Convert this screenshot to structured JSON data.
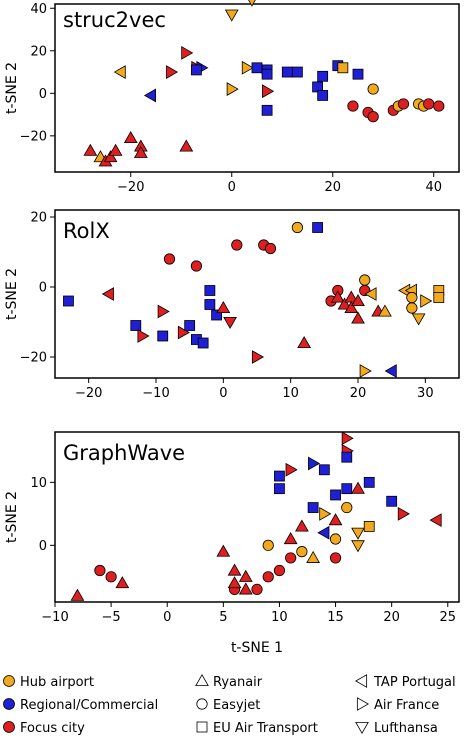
{
  "colors": {
    "hub": "#f2a91e",
    "regional": "#1f1fd6",
    "focus": "#de1f1f",
    "legend_marker_fill": "#ffffff",
    "axes": "#000000"
  },
  "legend": {
    "roles": [
      {
        "key": "hub",
        "label": "Hub airport"
      },
      {
        "key": "regional",
        "label": "Regional/Commercial"
      },
      {
        "key": "focus",
        "label": "Focus city"
      }
    ],
    "airlines": [
      {
        "key": "ryanair",
        "shape": "triangle-up",
        "label": "Ryanair"
      },
      {
        "key": "easyjet",
        "shape": "circle",
        "label": "Easyjet"
      },
      {
        "key": "eu",
        "shape": "square",
        "label": "EU Air Transport"
      },
      {
        "key": "tap",
        "shape": "triangle-left",
        "label": "TAP Portugal"
      },
      {
        "key": "airfrance",
        "shape": "triangle-right",
        "label": "Air France"
      },
      {
        "key": "lufthansa",
        "shape": "triangle-down",
        "label": "Lufthansa"
      }
    ]
  },
  "chart_data": [
    {
      "type": "scatter",
      "title": "struc2vec",
      "xlabel": "",
      "ylabel": "t-SNE 2",
      "xlim": [
        -35,
        45
      ],
      "ylim": [
        -37,
        42
      ],
      "xticks": [
        -20,
        0,
        20,
        40
      ],
      "yticks": [
        -20,
        0,
        20,
        40
      ],
      "points": [
        {
          "x": -28,
          "y": -27,
          "shape": "triangle-up",
          "role": "focus"
        },
        {
          "x": -26,
          "y": -30,
          "shape": "triangle-up",
          "role": "hub"
        },
        {
          "x": -25,
          "y": -32,
          "shape": "triangle-up",
          "role": "focus"
        },
        {
          "x": -24,
          "y": -30,
          "shape": "triangle-up",
          "role": "focus"
        },
        {
          "x": -23,
          "y": -27,
          "shape": "triangle-up",
          "role": "focus"
        },
        {
          "x": -20,
          "y": -21,
          "shape": "triangle-up",
          "role": "focus"
        },
        {
          "x": -18,
          "y": -25,
          "shape": "triangle-up",
          "role": "focus"
        },
        {
          "x": -18,
          "y": -28,
          "shape": "triangle-up",
          "role": "focus"
        },
        {
          "x": -9,
          "y": -25,
          "shape": "triangle-up",
          "role": "focus"
        },
        {
          "x": -22,
          "y": 10,
          "shape": "triangle-left",
          "role": "hub"
        },
        {
          "x": -16,
          "y": -1,
          "shape": "triangle-left",
          "role": "regional"
        },
        {
          "x": -12,
          "y": 10,
          "shape": "triangle-right",
          "role": "focus"
        },
        {
          "x": -9,
          "y": 19,
          "shape": "triangle-right",
          "role": "focus"
        },
        {
          "x": -7,
          "y": 12,
          "shape": "triangle-right",
          "role": "focus"
        },
        {
          "x": -6,
          "y": 12,
          "shape": "triangle-right",
          "role": "regional"
        },
        {
          "x": -7,
          "y": 11,
          "shape": "square",
          "role": "regional"
        },
        {
          "x": 0,
          "y": 37,
          "shape": "triangle-down",
          "role": "hub"
        },
        {
          "x": 4,
          "y": 44,
          "shape": "triangle-down",
          "role": "hub"
        },
        {
          "x": 0,
          "y": 2,
          "shape": "triangle-right",
          "role": "hub"
        },
        {
          "x": 3,
          "y": 12,
          "shape": "triangle-right",
          "role": "hub"
        },
        {
          "x": 5,
          "y": 12,
          "shape": "square",
          "role": "regional"
        },
        {
          "x": 7,
          "y": 11,
          "shape": "square",
          "role": "regional"
        },
        {
          "x": 7,
          "y": 9,
          "shape": "square",
          "role": "regional"
        },
        {
          "x": 7,
          "y": -8,
          "shape": "square",
          "role": "regional"
        },
        {
          "x": 7,
          "y": 1,
          "shape": "triangle-right",
          "role": "focus"
        },
        {
          "x": 11,
          "y": 10,
          "shape": "square",
          "role": "regional"
        },
        {
          "x": 13,
          "y": 10,
          "shape": "square",
          "role": "regional"
        },
        {
          "x": 17,
          "y": 3,
          "shape": "square",
          "role": "regional"
        },
        {
          "x": 18,
          "y": 8,
          "shape": "square",
          "role": "regional"
        },
        {
          "x": 18,
          "y": -1,
          "shape": "square",
          "role": "regional"
        },
        {
          "x": 21,
          "y": 13,
          "shape": "square",
          "role": "regional"
        },
        {
          "x": 22,
          "y": 12,
          "shape": "square",
          "role": "hub"
        },
        {
          "x": 25,
          "y": 9,
          "shape": "square",
          "role": "regional"
        },
        {
          "x": 24,
          "y": -6,
          "shape": "circle",
          "role": "focus"
        },
        {
          "x": 27,
          "y": -9,
          "shape": "circle",
          "role": "focus"
        },
        {
          "x": 28,
          "y": -11,
          "shape": "circle",
          "role": "focus"
        },
        {
          "x": 28,
          "y": 2,
          "shape": "circle",
          "role": "hub"
        },
        {
          "x": 32,
          "y": -8,
          "shape": "circle",
          "role": "focus"
        },
        {
          "x": 33,
          "y": -6,
          "shape": "circle",
          "role": "hub"
        },
        {
          "x": 34,
          "y": -5,
          "shape": "circle",
          "role": "focus"
        },
        {
          "x": 37,
          "y": -5,
          "shape": "circle",
          "role": "hub"
        },
        {
          "x": 38,
          "y": -6,
          "shape": "circle",
          "role": "hub"
        },
        {
          "x": 39,
          "y": -5,
          "shape": "circle",
          "role": "focus"
        },
        {
          "x": 41,
          "y": -6,
          "shape": "circle",
          "role": "focus"
        }
      ]
    },
    {
      "type": "scatter",
      "title": "RolX",
      "xlabel": "",
      "ylabel": "t-SNE 2",
      "xlim": [
        -25,
        35
      ],
      "ylim": [
        -26,
        22
      ],
      "xticks": [
        -20,
        -10,
        0,
        10,
        20,
        30
      ],
      "yticks": [
        -20,
        0,
        20
      ],
      "points": [
        {
          "x": -23,
          "y": -4,
          "shape": "square",
          "role": "regional"
        },
        {
          "x": -17,
          "y": -2,
          "shape": "triangle-left",
          "role": "focus"
        },
        {
          "x": -13,
          "y": -11,
          "shape": "square",
          "role": "regional"
        },
        {
          "x": -12,
          "y": -14,
          "shape": "triangle-right",
          "role": "focus"
        },
        {
          "x": -9,
          "y": -7,
          "shape": "triangle-right",
          "role": "focus"
        },
        {
          "x": -9,
          "y": -14,
          "shape": "square",
          "role": "regional"
        },
        {
          "x": -8,
          "y": 8,
          "shape": "circle",
          "role": "focus"
        },
        {
          "x": -4,
          "y": 6,
          "shape": "circle",
          "role": "focus"
        },
        {
          "x": -6,
          "y": -13,
          "shape": "triangle-right",
          "role": "focus"
        },
        {
          "x": -5,
          "y": -11,
          "shape": "square",
          "role": "regional"
        },
        {
          "x": -4,
          "y": -15,
          "shape": "square",
          "role": "regional"
        },
        {
          "x": -3,
          "y": -16,
          "shape": "square",
          "role": "regional"
        },
        {
          "x": -2,
          "y": -1,
          "shape": "square",
          "role": "regional"
        },
        {
          "x": -2,
          "y": -5,
          "shape": "square",
          "role": "regional"
        },
        {
          "x": -1,
          "y": -8,
          "shape": "square",
          "role": "regional"
        },
        {
          "x": 0,
          "y": -6,
          "shape": "triangle-up",
          "role": "focus"
        },
        {
          "x": 1,
          "y": -10,
          "shape": "triangle-down",
          "role": "focus"
        },
        {
          "x": 2,
          "y": 12,
          "shape": "circle",
          "role": "focus"
        },
        {
          "x": 5,
          "y": -20,
          "shape": "triangle-right",
          "role": "focus"
        },
        {
          "x": 6,
          "y": 12,
          "shape": "circle",
          "role": "focus"
        },
        {
          "x": 7,
          "y": 11,
          "shape": "circle",
          "role": "focus"
        },
        {
          "x": 11,
          "y": 17,
          "shape": "circle",
          "role": "hub"
        },
        {
          "x": 12,
          "y": -16,
          "shape": "triangle-up",
          "role": "focus"
        },
        {
          "x": 14,
          "y": 17,
          "shape": "square",
          "role": "regional"
        },
        {
          "x": 16,
          "y": -4,
          "shape": "circle",
          "role": "focus"
        },
        {
          "x": 17,
          "y": -1,
          "shape": "circle",
          "role": "focus"
        },
        {
          "x": 17,
          "y": -3,
          "shape": "triangle-up",
          "role": "focus"
        },
        {
          "x": 18,
          "y": -5,
          "shape": "triangle-up",
          "role": "focus"
        },
        {
          "x": 19,
          "y": -3,
          "shape": "triangle-up",
          "role": "focus"
        },
        {
          "x": 19,
          "y": -6,
          "shape": "triangle-up",
          "role": "focus"
        },
        {
          "x": 20,
          "y": -4,
          "shape": "triangle-up",
          "role": "focus"
        },
        {
          "x": 20,
          "y": -9,
          "shape": "triangle-up",
          "role": "focus"
        },
        {
          "x": 21,
          "y": -1,
          "shape": "circle",
          "role": "focus"
        },
        {
          "x": 21,
          "y": 2,
          "shape": "circle",
          "role": "hub"
        },
        {
          "x": 22,
          "y": -2,
          "shape": "triangle-left",
          "role": "hub"
        },
        {
          "x": 21,
          "y": -24,
          "shape": "triangle-right",
          "role": "hub"
        },
        {
          "x": 23,
          "y": -7,
          "shape": "triangle-up",
          "role": "focus"
        },
        {
          "x": 24,
          "y": -7,
          "shape": "triangle-up",
          "role": "hub"
        },
        {
          "x": 25,
          "y": -24,
          "shape": "triangle-left",
          "role": "regional"
        },
        {
          "x": 27,
          "y": -1,
          "shape": "triangle-left",
          "role": "hub"
        },
        {
          "x": 28,
          "y": -1,
          "shape": "triangle-left",
          "role": "hub"
        },
        {
          "x": 28,
          "y": -3,
          "shape": "circle",
          "role": "hub"
        },
        {
          "x": 28,
          "y": -6,
          "shape": "circle",
          "role": "hub"
        },
        {
          "x": 29,
          "y": -9,
          "shape": "triangle-down",
          "role": "hub"
        },
        {
          "x": 30,
          "y": -4,
          "shape": "triangle-right",
          "role": "hub"
        },
        {
          "x": 32,
          "y": -1,
          "shape": "square",
          "role": "hub"
        },
        {
          "x": 32,
          "y": -3,
          "shape": "square",
          "role": "hub"
        }
      ]
    },
    {
      "type": "scatter",
      "title": "GraphWave",
      "xlabel": "t-SNE 1",
      "ylabel": "t-SNE 2",
      "xlim": [
        -10,
        26
      ],
      "ylim": [
        -9,
        18
      ],
      "xticks": [
        -10,
        -5,
        0,
        5,
        10,
        15,
        20,
        25
      ],
      "yticks": [
        0,
        10
      ],
      "points": [
        {
          "x": -8,
          "y": -8,
          "shape": "triangle-up",
          "role": "focus"
        },
        {
          "x": -6,
          "y": -4,
          "shape": "circle",
          "role": "focus"
        },
        {
          "x": -5,
          "y": -5,
          "shape": "circle",
          "role": "focus"
        },
        {
          "x": -4,
          "y": -6,
          "shape": "triangle-up",
          "role": "focus"
        },
        {
          "x": 5,
          "y": -1,
          "shape": "triangle-up",
          "role": "focus"
        },
        {
          "x": 6,
          "y": -7,
          "shape": "circle",
          "role": "focus"
        },
        {
          "x": 6,
          "y": -6,
          "shape": "triangle-up",
          "role": "focus"
        },
        {
          "x": 6,
          "y": -4,
          "shape": "triangle-up",
          "role": "focus"
        },
        {
          "x": 7,
          "y": -5,
          "shape": "triangle-up",
          "role": "focus"
        },
        {
          "x": 7,
          "y": -7,
          "shape": "triangle-up",
          "role": "focus"
        },
        {
          "x": 8,
          "y": -7,
          "shape": "circle",
          "role": "focus"
        },
        {
          "x": 9,
          "y": 0,
          "shape": "circle",
          "role": "hub"
        },
        {
          "x": 9,
          "y": -5,
          "shape": "circle",
          "role": "focus"
        },
        {
          "x": 10,
          "y": 11,
          "shape": "square",
          "role": "regional"
        },
        {
          "x": 10,
          "y": 9,
          "shape": "square",
          "role": "regional"
        },
        {
          "x": 10,
          "y": -4,
          "shape": "circle",
          "role": "focus"
        },
        {
          "x": 11,
          "y": 12,
          "shape": "triangle-right",
          "role": "focus"
        },
        {
          "x": 11,
          "y": -2,
          "shape": "circle",
          "role": "focus"
        },
        {
          "x": 11,
          "y": 1,
          "shape": "triangle-up",
          "role": "focus"
        },
        {
          "x": 12,
          "y": -1,
          "shape": "circle",
          "role": "hub"
        },
        {
          "x": 12,
          "y": 3,
          "shape": "triangle-up",
          "role": "focus"
        },
        {
          "x": 13,
          "y": 6,
          "shape": "square",
          "role": "regional"
        },
        {
          "x": 13,
          "y": 13,
          "shape": "triangle-right",
          "role": "regional"
        },
        {
          "x": 13,
          "y": -2,
          "shape": "triangle-up",
          "role": "hub"
        },
        {
          "x": 14,
          "y": 12,
          "shape": "square",
          "role": "regional"
        },
        {
          "x": 14,
          "y": 5,
          "shape": "triangle-right",
          "role": "hub"
        },
        {
          "x": 14,
          "y": 2,
          "shape": "triangle-left",
          "role": "regional"
        },
        {
          "x": 15,
          "y": 8,
          "shape": "square",
          "role": "regional"
        },
        {
          "x": 15,
          "y": 4,
          "shape": "triangle-up",
          "role": "focus"
        },
        {
          "x": 15,
          "y": 1,
          "shape": "circle",
          "role": "hub"
        },
        {
          "x": 15,
          "y": -2,
          "shape": "circle",
          "role": "focus"
        },
        {
          "x": 16,
          "y": 17,
          "shape": "triangle-right",
          "role": "focus"
        },
        {
          "x": 16,
          "y": 15,
          "shape": "triangle-right",
          "role": "focus"
        },
        {
          "x": 16,
          "y": 14,
          "shape": "square",
          "role": "regional"
        },
        {
          "x": 16,
          "y": 9,
          "shape": "square",
          "role": "regional"
        },
        {
          "x": 16,
          "y": 6,
          "shape": "circle",
          "role": "hub"
        },
        {
          "x": 17,
          "y": 9,
          "shape": "triangle-up",
          "role": "focus"
        },
        {
          "x": 17,
          "y": 2,
          "shape": "triangle-down",
          "role": "hub"
        },
        {
          "x": 17,
          "y": 0,
          "shape": "triangle-down",
          "role": "hub"
        },
        {
          "x": 18,
          "y": 10,
          "shape": "square",
          "role": "regional"
        },
        {
          "x": 18,
          "y": 3,
          "shape": "square",
          "role": "hub"
        },
        {
          "x": 20,
          "y": 7,
          "shape": "square",
          "role": "regional"
        },
        {
          "x": 21,
          "y": 5,
          "shape": "triangle-right",
          "role": "focus"
        },
        {
          "x": 24,
          "y": 4,
          "shape": "triangle-left",
          "role": "focus"
        }
      ]
    }
  ]
}
